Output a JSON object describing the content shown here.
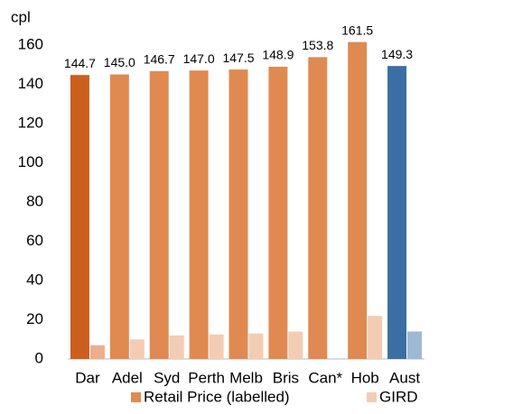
{
  "chart_data": {
    "type": "bar",
    "y_label": "cpl",
    "categories": [
      "Dar",
      "Adel",
      "Syd",
      "Perth",
      "Melb",
      "Bris",
      "Can*",
      "Hob",
      "Aust"
    ],
    "series": [
      {
        "name": "Retail Price (labelled)",
        "color": "#e08a52",
        "colors": [
          "#cc5f1e",
          "#e08a52",
          "#e08a52",
          "#e08a52",
          "#e08a52",
          "#e08a52",
          "#e08a52",
          "#e08a52",
          "#3b6fa3"
        ],
        "values": [
          144.7,
          145.0,
          146.7,
          147.0,
          147.5,
          148.9,
          153.8,
          161.5,
          149.3
        ],
        "value_labels": [
          "144.7",
          "145.0",
          "146.7",
          "147.0",
          "147.5",
          "148.9",
          "153.8",
          "161.5",
          "149.3"
        ]
      },
      {
        "name": "GIRD",
        "color": "#f3cdb3",
        "colors": [
          "#eeae8e",
          "#f3cdb3",
          "#f3cdb3",
          "#f3cdb3",
          "#f3cdb3",
          "#f3cdb3",
          "#f3cdb3",
          "#f3cdb3",
          "#9db9d4"
        ],
        "values": [
          7,
          10,
          12,
          12.5,
          13,
          14,
          null,
          22,
          14
        ]
      }
    ],
    "ylim": [
      0,
      165
    ],
    "yticks": [
      0,
      20,
      40,
      60,
      80,
      100,
      120,
      140,
      160
    ],
    "grid": false,
    "legend": "bottom"
  }
}
